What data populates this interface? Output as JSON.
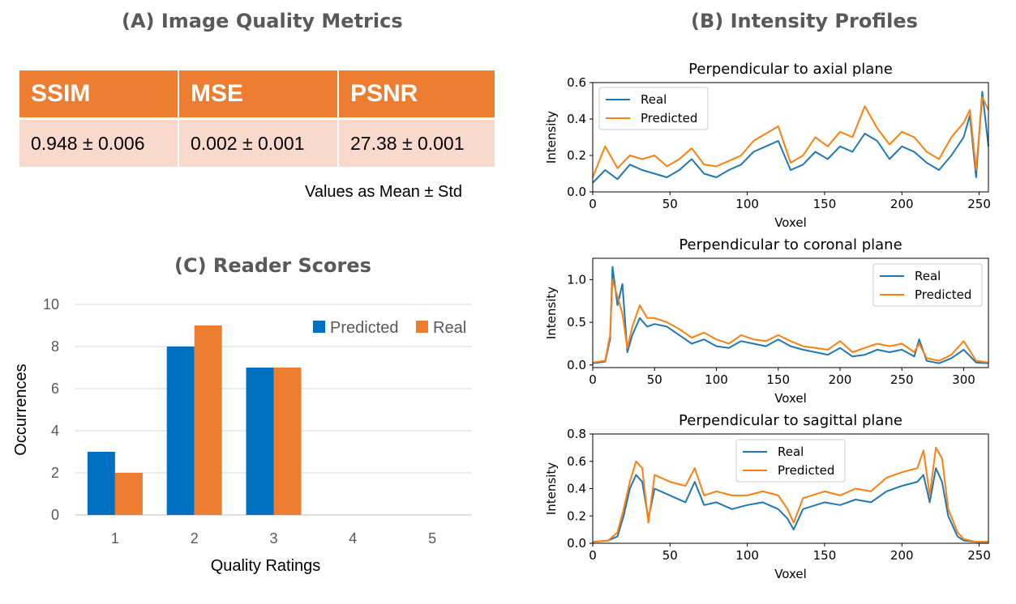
{
  "panel_a": {
    "title": "(A) Image Quality Metrics",
    "headers": [
      "SSIM",
      "MSE",
      "PSNR"
    ],
    "values": [
      "0.948 ± 0.006",
      "0.002 ± 0.001",
      "27.38 ± 0.001"
    ],
    "note": "Values as Mean ± Std"
  },
  "panel_b": {
    "title": "(B) Intensity Profiles"
  },
  "panel_c": {
    "title": "(C) Reader Scores"
  },
  "colors": {
    "table_header": "#ED7D31",
    "table_cell": "#F8D9CC",
    "bar_predicted": "#0070C0",
    "bar_real": "#ED7D31",
    "line_real": "#1F77B4",
    "line_predicted": "#FF7F0E"
  },
  "chart_data": [
    {
      "type": "bar",
      "title": "(C) Reader Scores",
      "categories": [
        "1",
        "2",
        "3",
        "4",
        "5"
      ],
      "series": [
        {
          "name": "Predicted",
          "values": [
            3,
            8,
            7,
            0,
            0
          ]
        },
        {
          "name": "Real",
          "values": [
            2,
            9,
            7,
            0,
            0
          ]
        }
      ],
      "xlabel": "Quality Ratings",
      "ylabel": "Occurrences",
      "ylim": [
        0,
        10
      ],
      "yticks": [
        "0",
        "2",
        "4",
        "6",
        "8",
        "10"
      ],
      "legend": "top-right"
    },
    {
      "type": "line",
      "title": "Perpendicular to axial plane",
      "xlabel": "Voxel",
      "ylabel": "Intensity",
      "xlim": [
        0,
        256
      ],
      "ylim": [
        0,
        0.6
      ],
      "xticks": [
        "0",
        "50",
        "100",
        "150",
        "200",
        "250"
      ],
      "yticks": [
        "0.0",
        "0.2",
        "0.4",
        "0.6"
      ],
      "legend": "top-left",
      "series": [
        {
          "name": "Real",
          "x": [
            0,
            8,
            16,
            24,
            32,
            40,
            48,
            56,
            64,
            72,
            80,
            88,
            96,
            104,
            112,
            120,
            128,
            136,
            144,
            152,
            160,
            168,
            176,
            184,
            192,
            200,
            208,
            216,
            224,
            232,
            240,
            244,
            248,
            252,
            256
          ],
          "y": [
            0.05,
            0.12,
            0.07,
            0.15,
            0.12,
            0.1,
            0.08,
            0.12,
            0.18,
            0.1,
            0.08,
            0.12,
            0.15,
            0.22,
            0.25,
            0.28,
            0.12,
            0.15,
            0.22,
            0.18,
            0.25,
            0.22,
            0.32,
            0.28,
            0.18,
            0.25,
            0.22,
            0.16,
            0.12,
            0.2,
            0.3,
            0.42,
            0.08,
            0.55,
            0.25
          ]
        },
        {
          "name": "Predicted",
          "x": [
            0,
            8,
            16,
            24,
            32,
            40,
            48,
            56,
            64,
            72,
            80,
            88,
            96,
            104,
            112,
            120,
            128,
            136,
            144,
            152,
            160,
            168,
            176,
            184,
            192,
            200,
            208,
            216,
            224,
            232,
            240,
            244,
            248,
            252,
            256
          ],
          "y": [
            0.08,
            0.25,
            0.13,
            0.2,
            0.18,
            0.2,
            0.14,
            0.18,
            0.24,
            0.15,
            0.14,
            0.17,
            0.2,
            0.28,
            0.32,
            0.36,
            0.16,
            0.2,
            0.3,
            0.25,
            0.33,
            0.3,
            0.47,
            0.35,
            0.26,
            0.33,
            0.3,
            0.22,
            0.18,
            0.3,
            0.38,
            0.45,
            0.12,
            0.52,
            0.45
          ]
        }
      ]
    },
    {
      "type": "line",
      "title": "Perpendicular to coronal plane",
      "xlabel": "Voxel",
      "ylabel": "Intensity",
      "xlim": [
        0,
        320
      ],
      "ylim": [
        -0.03,
        1.25
      ],
      "xticks": [
        "0",
        "50",
        "100",
        "150",
        "200",
        "250",
        "300"
      ],
      "yticks": [
        "0.0",
        "0.5",
        "1.0"
      ],
      "legend": "top-right",
      "series": [
        {
          "name": "Real",
          "x": [
            0,
            10,
            14,
            16,
            20,
            24,
            28,
            32,
            38,
            44,
            50,
            60,
            70,
            80,
            90,
            100,
            110,
            120,
            130,
            140,
            150,
            160,
            170,
            180,
            190,
            200,
            210,
            220,
            230,
            240,
            250,
            260,
            264,
            270,
            280,
            290,
            300,
            310,
            320
          ],
          "y": [
            0.02,
            0.04,
            0.3,
            1.15,
            0.7,
            0.95,
            0.15,
            0.35,
            0.55,
            0.45,
            0.48,
            0.45,
            0.35,
            0.25,
            0.3,
            0.22,
            0.2,
            0.28,
            0.25,
            0.22,
            0.3,
            0.22,
            0.18,
            0.15,
            0.12,
            0.2,
            0.1,
            0.12,
            0.18,
            0.15,
            0.18,
            0.1,
            0.3,
            0.05,
            0.02,
            0.08,
            0.18,
            0.03,
            0.02
          ]
        },
        {
          "name": "Predicted",
          "x": [
            0,
            10,
            14,
            16,
            20,
            24,
            28,
            32,
            38,
            44,
            50,
            60,
            70,
            80,
            90,
            100,
            110,
            120,
            130,
            140,
            150,
            160,
            170,
            180,
            190,
            200,
            210,
            220,
            230,
            240,
            250,
            260,
            264,
            270,
            280,
            290,
            300,
            310,
            320
          ],
          "y": [
            0.03,
            0.05,
            0.35,
            1.0,
            0.8,
            0.6,
            0.2,
            0.45,
            0.7,
            0.55,
            0.55,
            0.5,
            0.42,
            0.32,
            0.38,
            0.3,
            0.25,
            0.35,
            0.3,
            0.28,
            0.35,
            0.28,
            0.22,
            0.2,
            0.18,
            0.28,
            0.15,
            0.2,
            0.25,
            0.22,
            0.25,
            0.15,
            0.25,
            0.08,
            0.05,
            0.12,
            0.28,
            0.05,
            0.03
          ]
        }
      ]
    },
    {
      "type": "line",
      "title": "Perpendicular to sagittal plane",
      "xlabel": "Voxel",
      "ylabel": "Intensity",
      "xlim": [
        0,
        256
      ],
      "ylim": [
        0,
        0.8
      ],
      "xticks": [
        "0",
        "50",
        "100",
        "150",
        "200",
        "250"
      ],
      "yticks": [
        "0.0",
        "0.2",
        "0.4",
        "0.6",
        "0.8"
      ],
      "legend": "top-center",
      "series": [
        {
          "name": "Real",
          "x": [
            0,
            10,
            16,
            20,
            24,
            28,
            32,
            36,
            40,
            50,
            60,
            66,
            72,
            80,
            90,
            100,
            110,
            120,
            126,
            130,
            136,
            150,
            160,
            170,
            180,
            190,
            200,
            210,
            214,
            218,
            222,
            226,
            230,
            236,
            240,
            248,
            256
          ],
          "y": [
            0.01,
            0.02,
            0.05,
            0.2,
            0.4,
            0.5,
            0.45,
            0.18,
            0.4,
            0.35,
            0.3,
            0.45,
            0.28,
            0.3,
            0.25,
            0.28,
            0.3,
            0.25,
            0.18,
            0.1,
            0.25,
            0.3,
            0.28,
            0.32,
            0.3,
            0.38,
            0.42,
            0.45,
            0.5,
            0.3,
            0.55,
            0.45,
            0.2,
            0.05,
            0.02,
            0.01,
            0.01
          ]
        },
        {
          "name": "Predicted",
          "x": [
            0,
            10,
            16,
            20,
            24,
            28,
            32,
            36,
            40,
            50,
            60,
            66,
            72,
            80,
            90,
            100,
            110,
            120,
            126,
            130,
            136,
            150,
            160,
            170,
            180,
            190,
            200,
            210,
            214,
            218,
            222,
            226,
            230,
            236,
            240,
            248,
            256
          ],
          "y": [
            0.01,
            0.02,
            0.08,
            0.25,
            0.45,
            0.6,
            0.55,
            0.15,
            0.5,
            0.45,
            0.42,
            0.55,
            0.35,
            0.38,
            0.35,
            0.35,
            0.38,
            0.35,
            0.25,
            0.15,
            0.33,
            0.38,
            0.35,
            0.4,
            0.38,
            0.48,
            0.52,
            0.55,
            0.68,
            0.35,
            0.7,
            0.62,
            0.25,
            0.08,
            0.03,
            0.01,
            0.01
          ]
        }
      ]
    }
  ]
}
